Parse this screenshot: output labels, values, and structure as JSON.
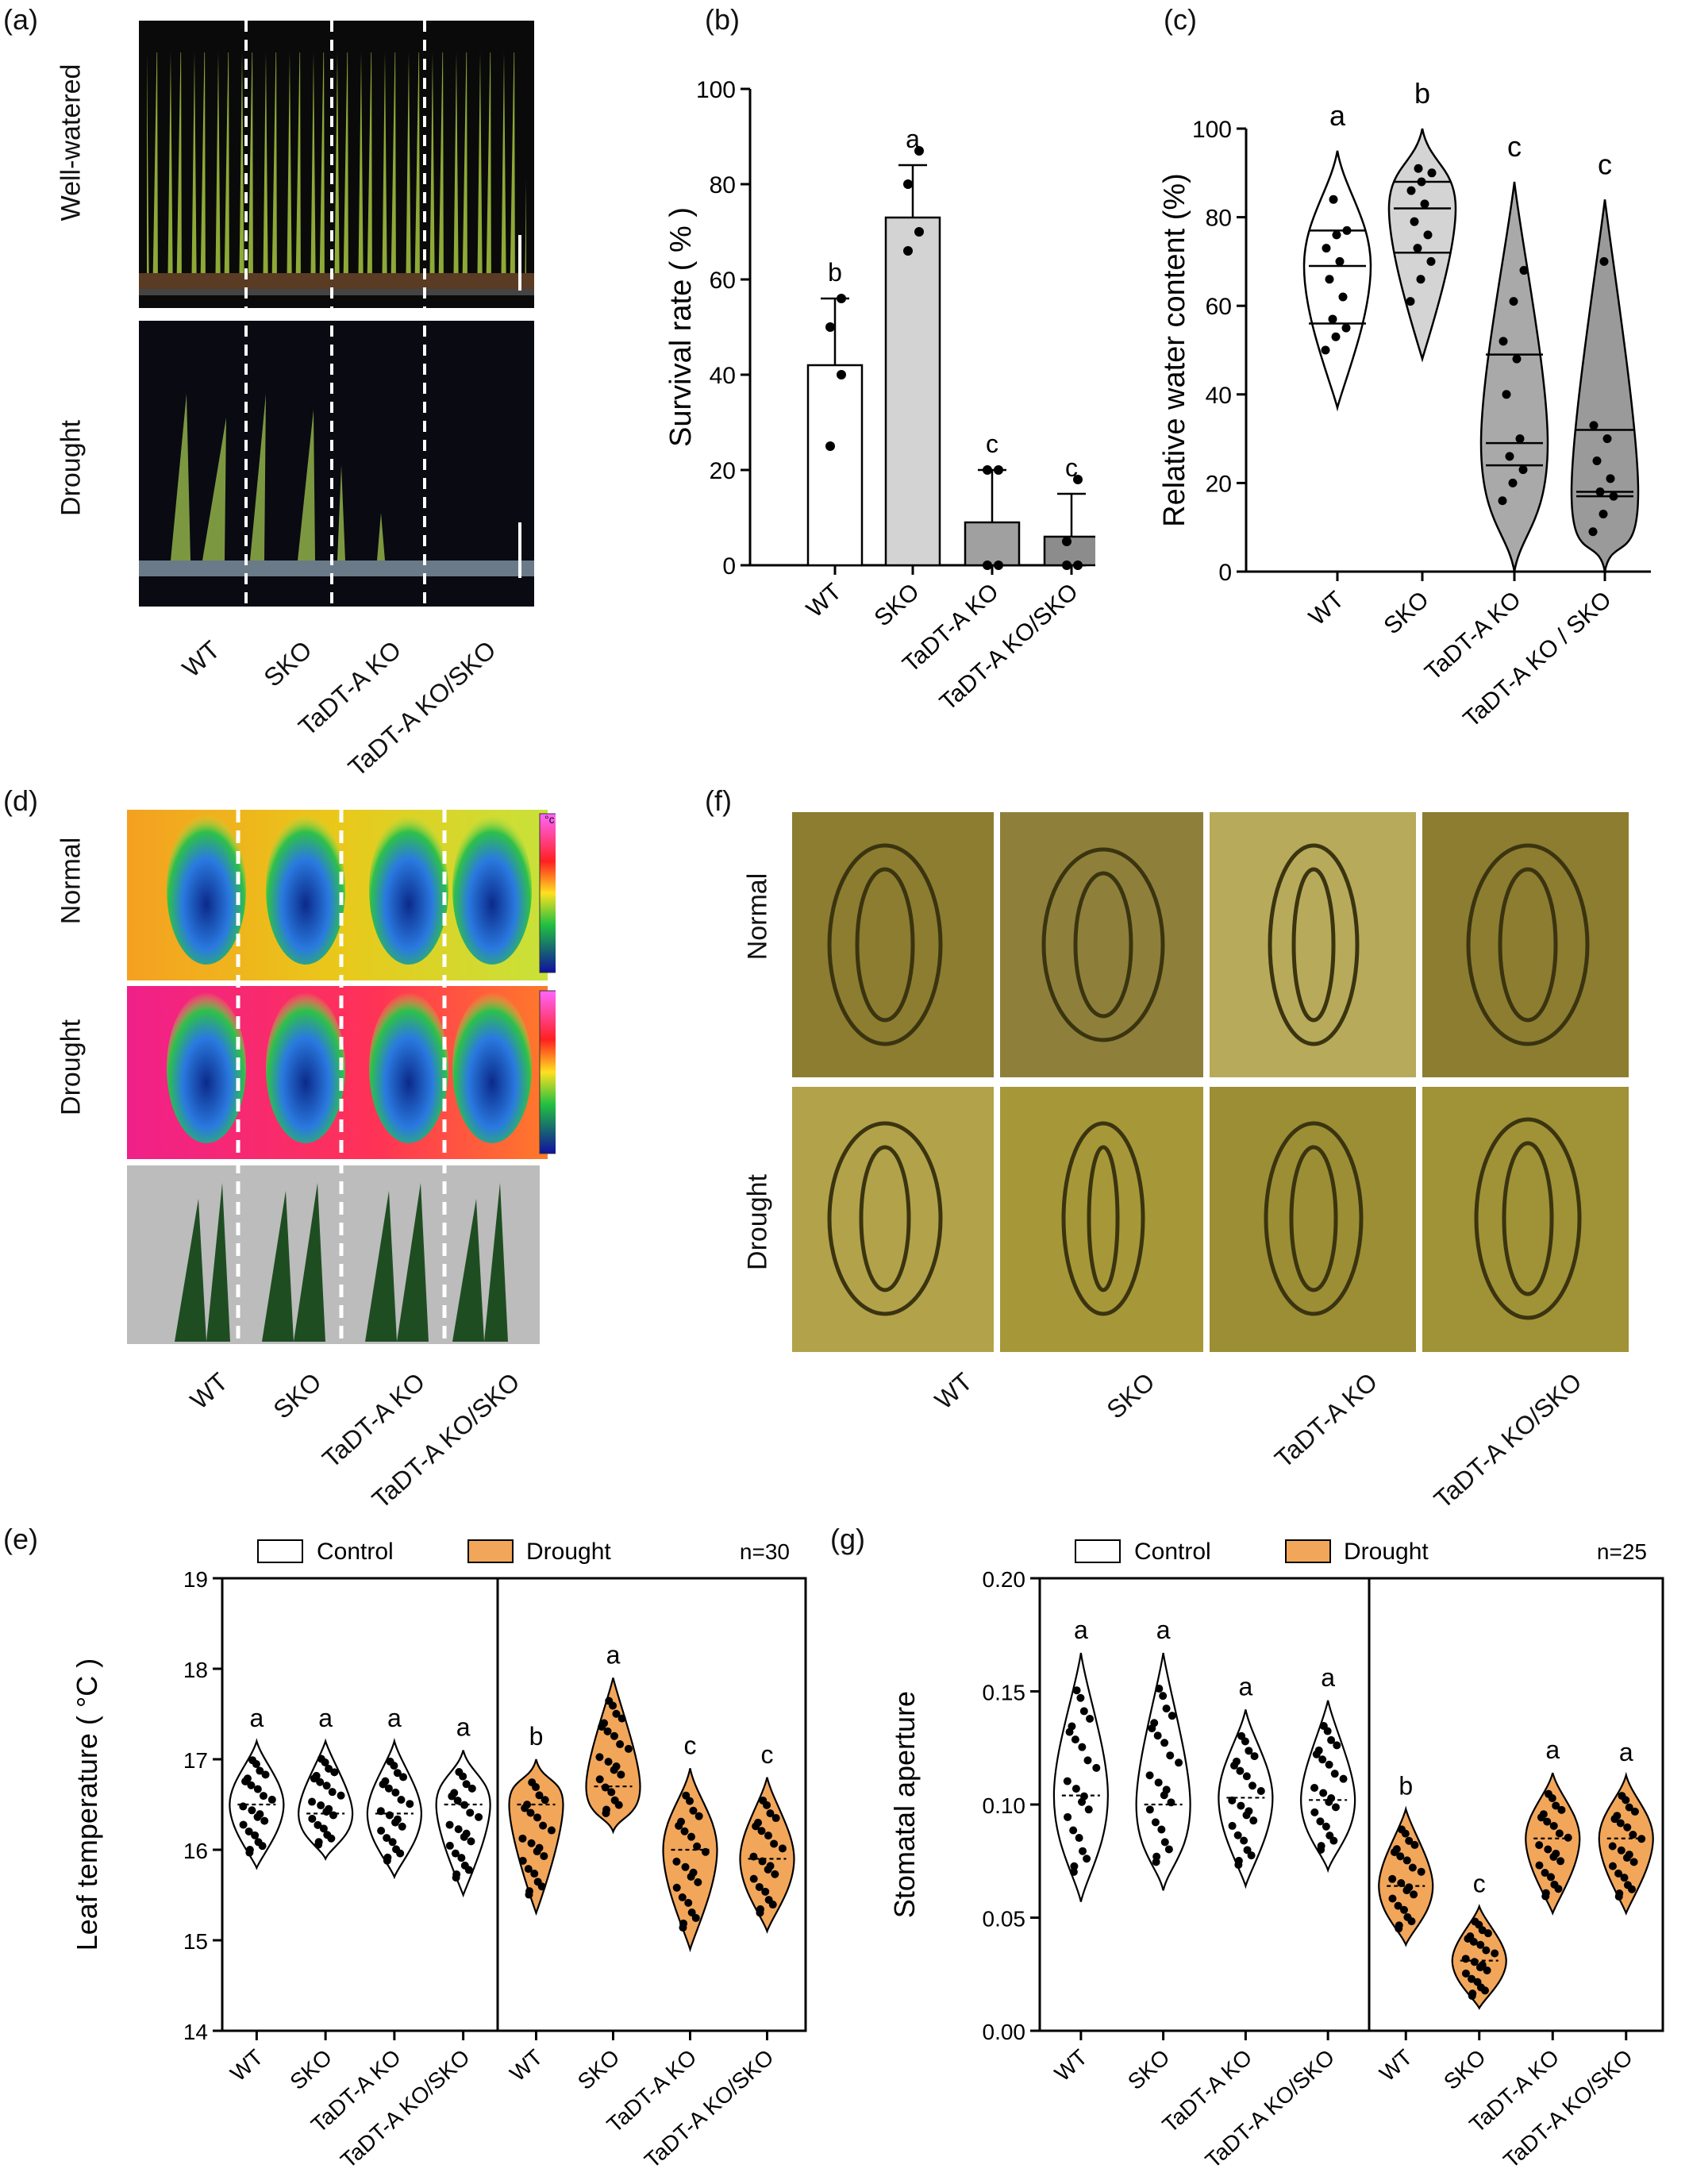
{
  "panels": {
    "a": {
      "label": "(a)",
      "row_labels": [
        "Well-watered",
        "Drought"
      ],
      "groups": [
        "WT",
        "SKO",
        "TaDT-A KO",
        "TaDT-A KO/SKO"
      ]
    },
    "b": {
      "label": "(b)"
    },
    "c": {
      "label": "(c)"
    },
    "d": {
      "label": "(d)",
      "row_labels": [
        "Normal",
        "Drought"
      ],
      "scale_unit": "°c",
      "groups": [
        "WT",
        "SKO",
        "TaDT-A KO",
        "TaDT-A KO/SKO"
      ]
    },
    "f": {
      "label": "(f)",
      "row_labels": [
        "Normal",
        "Drought"
      ],
      "groups": [
        "WT",
        "SKO",
        "TaDT-A KO",
        "TaDT-A KO/SKO"
      ]
    },
    "e": {
      "label": "(e)",
      "n_text": "n=30"
    },
    "g": {
      "label": "(g)",
      "n_text": "n=25"
    }
  },
  "legend": {
    "control": "Control",
    "drought": "Drought"
  },
  "colors": {
    "drought_fill": "#F2A65A",
    "b_bars": [
      "#FFFFFF",
      "#D3D3D3",
      "#A0A0A0",
      "#8C8C8C"
    ],
    "c_violins": [
      "#FFFFFF",
      "#D4D4D4",
      "#A9A9A9",
      "#9A9A9A"
    ]
  },
  "chart_data": [
    {
      "id": "b",
      "type": "bar",
      "categories": [
        "WT",
        "SKO",
        "TaDT-A KO",
        "TaDT-A KO/SKO"
      ],
      "values": [
        42,
        73,
        9,
        6
      ],
      "errors": [
        14,
        11,
        11,
        9
      ],
      "points": [
        [
          25,
          40,
          50,
          56
        ],
        [
          66,
          70,
          80,
          87
        ],
        [
          0,
          0,
          20,
          20
        ],
        [
          0,
          0,
          5,
          18
        ]
      ],
      "letters": [
        "b",
        "a",
        "c",
        "c"
      ],
      "ylabel": "Survival rate ( % )",
      "ylim": [
        0,
        100
      ],
      "yticks": [
        0,
        20,
        40,
        60,
        80,
        100
      ]
    },
    {
      "id": "c",
      "type": "violin",
      "categories": [
        "WT",
        "SKO",
        "TaDT-A KO",
        "TaDT-A KO / SKO"
      ],
      "ylabel": "Relative water content (%)",
      "ylim": [
        0,
        100
      ],
      "yticks": [
        0,
        20,
        40,
        60,
        80,
        100
      ],
      "letters": [
        "a",
        "b",
        "c",
        "c"
      ],
      "quartiles": [
        [
          56,
          69,
          77
        ],
        [
          72,
          82,
          88
        ],
        [
          24,
          29,
          49
        ],
        [
          17,
          18,
          32
        ]
      ],
      "range": [
        [
          37,
          95
        ],
        [
          48,
          100
        ],
        [
          0,
          88
        ],
        [
          0,
          84
        ]
      ],
      "points": [
        [
          50,
          53,
          55,
          57,
          62,
          66,
          70,
          73,
          76,
          77,
          84
        ],
        [
          61,
          66,
          70,
          73,
          76,
          79,
          83,
          86,
          88,
          90,
          91
        ],
        [
          16,
          20,
          23,
          26,
          30,
          40,
          48,
          52,
          61,
          68
        ],
        [
          9,
          13,
          17,
          18,
          21,
          25,
          30,
          33,
          70
        ]
      ]
    },
    {
      "id": "e",
      "type": "violin",
      "conditions": [
        "Control",
        "Drought"
      ],
      "categories": [
        "WT",
        "SKO",
        "TaDT-A KO",
        "TaDT-A KO/SKO",
        "WT",
        "SKO",
        "TaDT-A KO",
        "TaDT-A KO/SKO"
      ],
      "ylabel": "Leaf temperature ( °C )",
      "ylim": [
        14,
        19
      ],
      "yticks": [
        14,
        15,
        16,
        17,
        18,
        19
      ],
      "letters": [
        "a",
        "a",
        "a",
        "a",
        "b",
        "a",
        "c",
        "c"
      ],
      "medians": [
        16.5,
        16.4,
        16.4,
        16.5,
        16.5,
        16.7,
        16.0,
        15.9
      ],
      "range": [
        [
          15.8,
          17.2
        ],
        [
          15.9,
          17.2
        ],
        [
          15.7,
          17.2
        ],
        [
          15.5,
          17.1
        ],
        [
          15.3,
          17.0
        ],
        [
          16.2,
          17.9
        ],
        [
          14.9,
          16.9
        ],
        [
          15.1,
          16.8
        ]
      ]
    },
    {
      "id": "g",
      "type": "violin",
      "conditions": [
        "Control",
        "Drought"
      ],
      "categories": [
        "WT",
        "SKO",
        "TaDT-A KO",
        "TaDT-A KO/SKO",
        "WT",
        "SKO",
        "TaDT-A KO",
        "TaDT-A KO/SKO"
      ],
      "ylabel": "Stomatal aperture",
      "ylim": [
        0.0,
        0.2
      ],
      "yticks": [
        "0.00",
        "0.05",
        "0.10",
        "0.15",
        "0.20"
      ],
      "letters": [
        "a",
        "a",
        "a",
        "a",
        "b",
        "c",
        "a",
        "a"
      ],
      "medians": [
        0.104,
        0.1,
        0.103,
        0.102,
        0.064,
        0.031,
        0.085,
        0.085
      ],
      "range": [
        [
          0.057,
          0.167
        ],
        [
          0.062,
          0.167
        ],
        [
          0.064,
          0.142
        ],
        [
          0.071,
          0.146
        ],
        [
          0.038,
          0.098
        ],
        [
          0.01,
          0.055
        ],
        [
          0.052,
          0.114
        ],
        [
          0.052,
          0.113
        ]
      ]
    }
  ]
}
